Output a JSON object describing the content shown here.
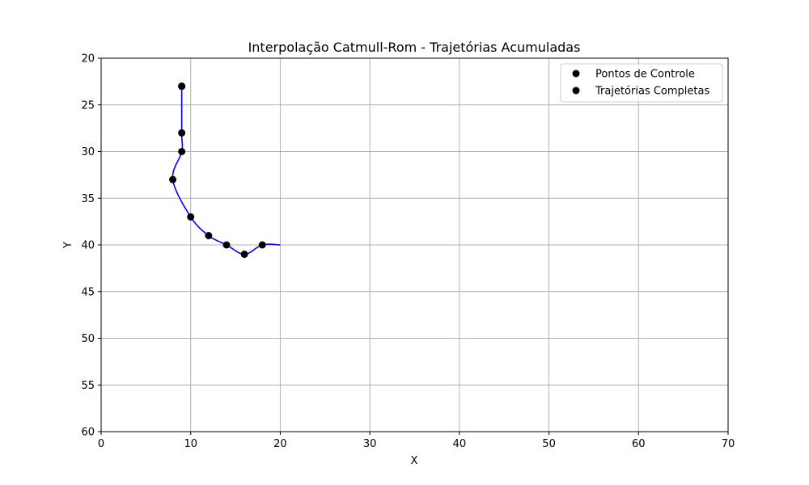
{
  "chart_data": {
    "type": "line",
    "title": "Interpolação Catmull-Rom - Trajetórias Acumuladas",
    "xlabel": "X",
    "ylabel": "Y",
    "xlim": [
      0,
      70
    ],
    "ylim": [
      60,
      20
    ],
    "y_axis_inverted": true,
    "grid": true,
    "legend_placement": "top-right",
    "x_ticks": [
      0,
      10,
      20,
      30,
      40,
      50,
      60,
      70
    ],
    "y_ticks": [
      20,
      25,
      30,
      35,
      40,
      45,
      50,
      55,
      60
    ],
    "series": [
      {
        "name": "Pontos de Controle",
        "kind": "markers",
        "color": "#000000",
        "points": [
          [
            9,
            23
          ],
          [
            9,
            23
          ],
          [
            9,
            28
          ],
          [
            9,
            30
          ],
          [
            8,
            33
          ],
          [
            10,
            37
          ],
          [
            12,
            39
          ],
          [
            14,
            40
          ],
          [
            16,
            41
          ],
          [
            18,
            40
          ]
        ]
      },
      {
        "name": "Trajetórias Completas",
        "kind": "curve",
        "color": "#0000ff",
        "legend_marker_color": "#000000",
        "points": [
          [
            9,
            23
          ],
          [
            9,
            28
          ],
          [
            9,
            30
          ],
          [
            8,
            33
          ],
          [
            10,
            37
          ],
          [
            12,
            39
          ],
          [
            14,
            40
          ],
          [
            16,
            41
          ],
          [
            18,
            40
          ],
          [
            20,
            40
          ]
        ]
      }
    ]
  }
}
